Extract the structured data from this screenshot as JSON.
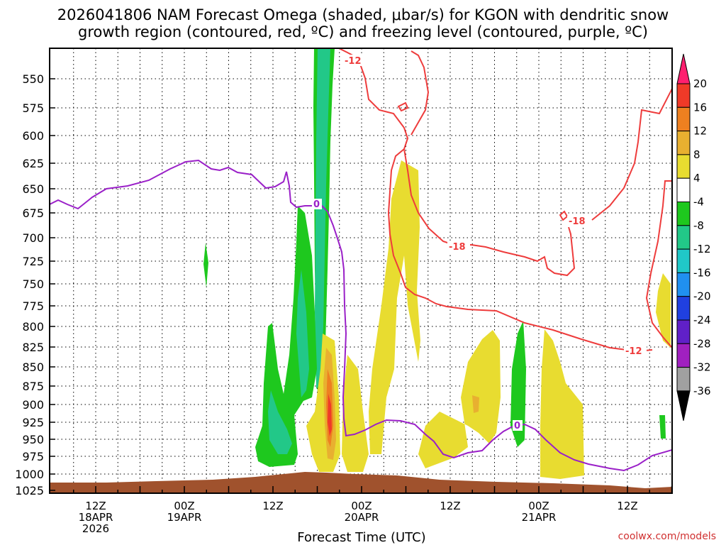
{
  "chart_data": {
    "type": "heatmap",
    "title_line1": "2026041806 NAM Forecast Omega (shaded, μbar/s) for KGON with dendritic snow",
    "title_line2": "growth region (contoured, red, ºC) and freezing level (contoured, purple, ºC)",
    "xlabel": "Forecast Time (UTC)",
    "x_ticks": [
      {
        "hour": 6,
        "label1": "12Z",
        "label2": "18APR",
        "label3": "2026"
      },
      {
        "hour": 18,
        "label1": "00Z",
        "label2": "19APR",
        "label3": ""
      },
      {
        "hour": 30,
        "label1": "12Z",
        "label2": "",
        "label3": ""
      },
      {
        "hour": 42,
        "label1": "00Z",
        "label2": "20APR",
        "label3": ""
      },
      {
        "hour": 54,
        "label1": "12Z",
        "label2": "",
        "label3": ""
      },
      {
        "hour": 66,
        "label1": "00Z",
        "label2": "21APR",
        "label3": ""
      },
      {
        "hour": 78,
        "label1": "12Z",
        "label2": "",
        "label3": ""
      }
    ],
    "y_ticks": [
      "550",
      "575",
      "600",
      "625",
      "650",
      "675",
      "700",
      "725",
      "750",
      "775",
      "800",
      "825",
      "850",
      "875",
      "900",
      "925",
      "950",
      "975",
      "1000",
      "1025"
    ],
    "colorbar": {
      "labels": [
        "20",
        "16",
        "12",
        "8",
        "4",
        "-4",
        "-8",
        "-12",
        "-16",
        "-20",
        "-24",
        "-28",
        "-32",
        "-36"
      ],
      "colors": [
        "#ff1f6f",
        "#f03a28",
        "#ee8020",
        "#e8b030",
        "#e8dc30",
        "#ffffff",
        "#1ec81e",
        "#22c888",
        "#20c8c8",
        "#2090f0",
        "#2040e0",
        "#6020c8",
        "#a020c0",
        "#a0a0a0",
        "#000000"
      ]
    },
    "contour_labels": {
      "dgz_top": "-12",
      "dgz_mid": "-18",
      "dgz_mid2": "-18",
      "dgz_bottom": "-12",
      "freezing": "0",
      "freezing2": "0"
    },
    "colors": {
      "dgz": "#ee3c3c",
      "freezing": "#9a20c8",
      "ground": "#a0522d"
    },
    "credit": "coolwx.com/models"
  }
}
